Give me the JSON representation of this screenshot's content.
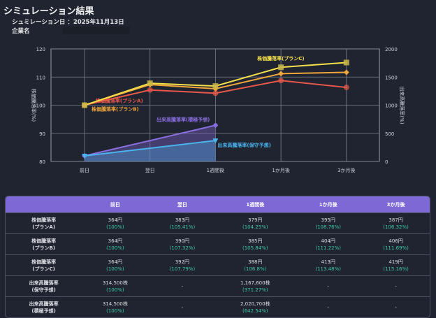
{
  "header": {
    "title": "シミュレーション結果",
    "date_label": "シュミレーション日",
    "date_value": "：2025年11月13日",
    "company_label": "企業名"
  },
  "chart_data": {
    "type": "line",
    "categories": [
      "前日",
      "翌日",
      "1週間後",
      "1か月後",
      "3か月後"
    ],
    "ylabel": "株価騰落率(%)",
    "ylim": [
      80,
      120
    ],
    "yticks": [
      80,
      90,
      100,
      110,
      120
    ],
    "y2label": "出来高騰落率(%)",
    "y2lim": [
      0,
      2000
    ],
    "y2ticks": [
      0,
      500,
      1000,
      1500,
      2000
    ],
    "grid": true,
    "series": [
      {
        "name": "株価騰落率(プランA)",
        "axis": "left",
        "values": [
          100,
          105.41,
          104.25,
          108.76,
          106.32
        ],
        "color": "#e8584a",
        "marker": "circle"
      },
      {
        "name": "株価騰落率(プランB)",
        "axis": "left",
        "values": [
          100,
          107.32,
          105.84,
          111.22,
          111.69
        ],
        "color": "#f0a63a",
        "marker": "diamond"
      },
      {
        "name": "株価騰落率(プランC)",
        "axis": "left",
        "values": [
          100,
          107.79,
          106.8,
          113.48,
          115.16
        ],
        "color": "#f5e04a",
        "marker": "square"
      },
      {
        "name": "出来高騰落率(積極予想)",
        "axis": "right",
        "values": [
          100,
          null,
          642.54,
          null,
          null
        ],
        "color": "#8a6ee0",
        "marker": "diamond",
        "fill": true
      },
      {
        "name": "出来高騰落率(保守予想)",
        "axis": "right",
        "values": [
          100,
          null,
          371.27,
          null,
          null
        ],
        "color": "#4ab4ec",
        "marker": "triangle",
        "fill": true
      }
    ]
  },
  "table": {
    "headers": [
      "",
      "前日",
      "翌日",
      "1週間後",
      "1か月後",
      "3か月後"
    ],
    "rows": [
      {
        "label1": "株価騰落率",
        "label2": "(プランA)",
        "cells": [
          [
            "364円",
            "(100%)"
          ],
          [
            "383円",
            "(105.41%)"
          ],
          [
            "379円",
            "(104.25%)"
          ],
          [
            "395円",
            "(108.76%)"
          ],
          [
            "387円",
            "(106.32%)"
          ]
        ]
      },
      {
        "label1": "株価騰落率",
        "label2": "(プランB)",
        "cells": [
          [
            "364円",
            "(100%)"
          ],
          [
            "390円",
            "(107.32%)"
          ],
          [
            "385円",
            "(105.84%)"
          ],
          [
            "404円",
            "(111.22%)"
          ],
          [
            "406円",
            "(111.69%)"
          ]
        ]
      },
      {
        "label1": "株価騰落率",
        "label2": "(プランC)",
        "cells": [
          [
            "364円",
            "(100%)"
          ],
          [
            "392円",
            "(107.79%)"
          ],
          [
            "388円",
            "(106.8%)"
          ],
          [
            "413円",
            "(113.48%)"
          ],
          [
            "419円",
            "(115.16%)"
          ]
        ]
      },
      {
        "label1": "出来高騰落率",
        "label2": "(保守予想)",
        "cells": [
          [
            "314,500株",
            "(100%)"
          ],
          [
            "-",
            ""
          ],
          [
            "1,167,600株",
            "(371.27%)"
          ],
          [
            "-",
            ""
          ],
          [
            "-",
            ""
          ]
        ]
      },
      {
        "label1": "出来高騰落率",
        "label2": "(積極予想)",
        "cells": [
          [
            "314,500株",
            "(100%)"
          ],
          [
            "-",
            ""
          ],
          [
            "2,020,700株",
            "(642.54%)"
          ],
          [
            "-",
            ""
          ],
          [
            "-",
            ""
          ]
        ]
      }
    ]
  }
}
